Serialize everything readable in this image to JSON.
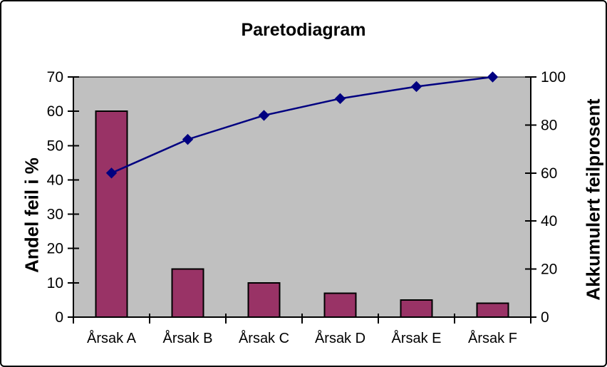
{
  "window": {
    "background": "#FFFFFF",
    "border_color": "#000000"
  },
  "chart_data": {
    "type": "bar",
    "subtype": "pareto (bar + cumulative line)",
    "title": "Paretodiagram",
    "categories": [
      "Årsak A",
      "Årsak B",
      "Årsak C",
      "Årsak D",
      "Årsak E",
      "Årsak F"
    ],
    "series": [
      {
        "name": "Andel feil i %",
        "type": "bar",
        "axis": "left",
        "values": [
          60,
          14,
          10,
          7,
          5,
          4
        ],
        "color": "#993366",
        "border_color": "#000000"
      },
      {
        "name": "Akkumulert feilprosent",
        "type": "line",
        "axis": "right",
        "values": [
          60,
          74,
          84,
          91,
          96,
          100
        ],
        "color": "#000080",
        "marker": "diamond",
        "marker_color": "#000080"
      }
    ],
    "left_axis": {
      "label": "Andel feil i %",
      "min": 0,
      "max": 70,
      "step": 10,
      "ticks": [
        0,
        10,
        20,
        30,
        40,
        50,
        60,
        70
      ]
    },
    "right_axis": {
      "label": "Akkumulert feilprosent",
      "min": 0,
      "max": 100,
      "step": 20,
      "ticks": [
        0,
        20,
        40,
        60,
        80,
        100
      ]
    },
    "plot_background": "#C0C0C0",
    "axis_color": "#000000",
    "text_color": "#000000",
    "grid": false,
    "legend": false
  }
}
